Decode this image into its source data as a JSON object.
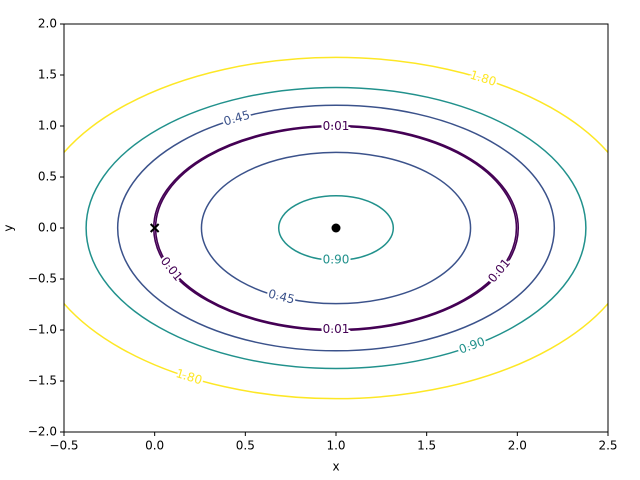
{
  "chart_data": {
    "type": "contour",
    "x_label": "x",
    "y_label": "y",
    "xlim": [
      -0.5,
      2.5
    ],
    "xticks": [
      {
        "value": -0.5,
        "label": "−0.5"
      },
      {
        "value": 0,
        "label": "0.0"
      },
      0.5,
      {
        "value": 1,
        "label": "1.0"
      },
      1.5,
      {
        "value": 2,
        "label": "2.0"
      },
      2.5
    ],
    "ylim": [
      -2,
      2
    ],
    "yticks": [
      {
        "value": -2,
        "label": "−2.0"
      },
      {
        "value": -1.5,
        "label": "−1.5"
      },
      {
        "value": -1,
        "label": "−1.0"
      },
      {
        "value": -0.5,
        "label": "−0.5"
      },
      {
        "value": 0,
        "label": "0.0"
      },
      0.5,
      {
        "value": 1,
        "label": "1.0"
      },
      1.5,
      {
        "value": 2,
        "label": "2.0"
      }
    ],
    "center_x": 1,
    "center_y": 0,
    "contours": [
      {
        "level": {
          "value": 0.01,
          "label": "0.01"
        },
        "color": "#440154",
        "radii": [
          0.995,
          1.005
        ]
      },
      {
        "level": {
          "value": 0.45,
          "label": "0.45"
        },
        "color": "#3b528b",
        "radii": [
          0.742,
          1.204
        ]
      },
      {
        "level": {
          "value": 0.9,
          "label": "0.90"
        },
        "color": "#21918c",
        "radii": [
          0.316,
          1.378
        ]
      },
      {
        "level": {
          "value": 1.8,
          "label": "1.80"
        },
        "color": "#fde725",
        "radii": [
          1.673
        ]
      }
    ],
    "markers": [
      {
        "x": 1,
        "y": 0,
        "marker": "o",
        "color": "#000000"
      },
      {
        "x": 0,
        "y": 0,
        "marker": "x",
        "color": "#000000"
      }
    ]
  }
}
